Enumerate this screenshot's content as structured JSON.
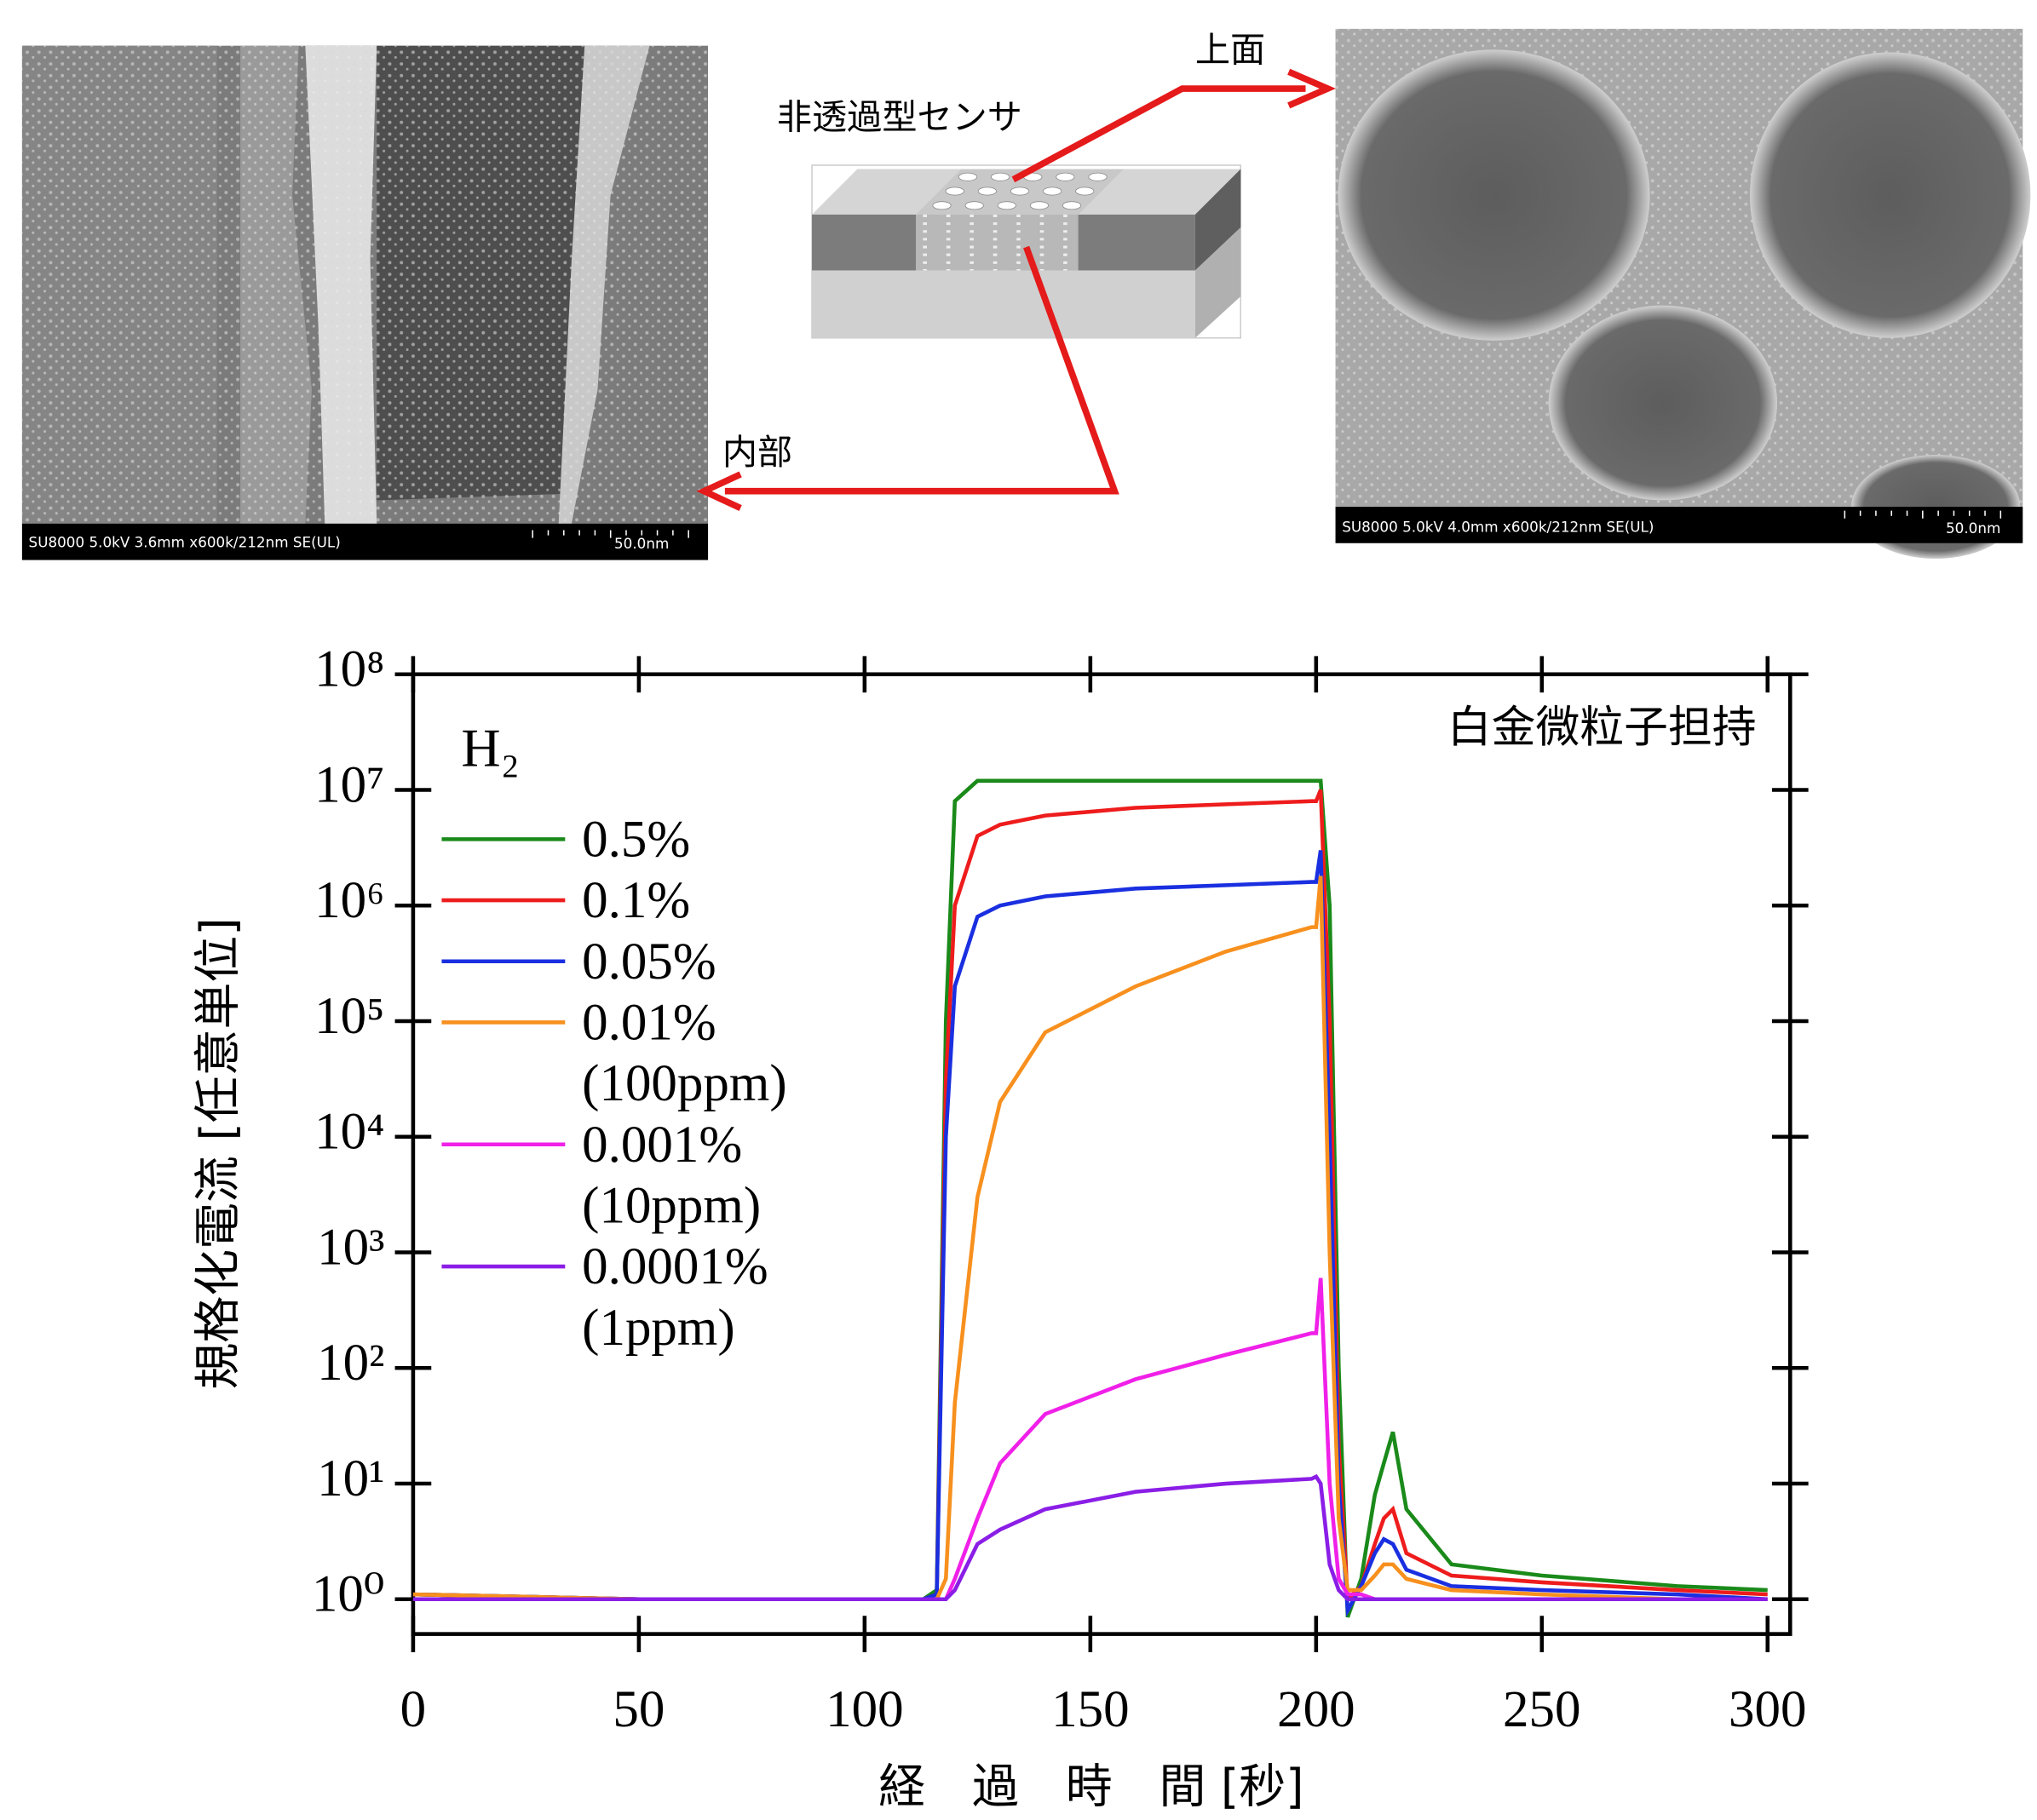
{
  "images": [
    {
      "caption": "SU8000 5.0kV 3.6mm x600k/212nm SE(UL)",
      "scale": "50.0nm"
    },
    {
      "caption": "SU8000 5.0kV 4.0mm x600k/212nm SE(UL)",
      "scale": "50.0nm"
    }
  ],
  "diagram": {
    "title": "非透過型センサ",
    "top_label": "上面",
    "inner_label": "内部"
  },
  "chart_data": {
    "type": "line",
    "log_y": true,
    "gas": "H₂",
    "annotation": "白金微粒子担持",
    "xlabel": "経　過　時　間 [秒]",
    "ylabel": "規格化電流 [任意単位]",
    "xlim": [
      0,
      305
    ],
    "ylim": [
      0.5,
      100000000
    ],
    "xticks": [
      0,
      50,
      100,
      150,
      200,
      250,
      300
    ],
    "yticks": [
      {
        "value": 1,
        "label": "10⁰"
      },
      {
        "value": 10,
        "label": "10¹"
      },
      {
        "value": 100,
        "label": "10²"
      },
      {
        "value": 1000,
        "label": "10³"
      },
      {
        "value": 10000,
        "label": "10⁴"
      },
      {
        "value": 100000,
        "label": "10⁵"
      },
      {
        "value": 1000000,
        "label": "10⁶"
      },
      {
        "value": 10000000,
        "label": "10⁷"
      },
      {
        "value": 100000000,
        "label": "10⁸"
      }
    ],
    "x": [
      0,
      50,
      100,
      113,
      116,
      118,
      120,
      125,
      130,
      140,
      160,
      180,
      199,
      200,
      201,
      203,
      205,
      207,
      210,
      213,
      215,
      217,
      220,
      230,
      250,
      280,
      300
    ],
    "series": [
      {
        "name": "0.5%",
        "color": "#1a8a1a",
        "values": [
          1.1,
          1,
          1,
          1,
          1.2,
          100000,
          8000000,
          12000000,
          12000000,
          12000000,
          12000000,
          12000000,
          12000000,
          12000000,
          12000000,
          1000000,
          100,
          0.7,
          1.5,
          8,
          15,
          28,
          6,
          2,
          1.6,
          1.3,
          1.2
        ]
      },
      {
        "name": "0.1%",
        "color": "#ee1c1c",
        "values": [
          1.1,
          1,
          1,
          1,
          1.1,
          30000,
          1000000,
          4000000,
          5000000,
          6000000,
          7000000,
          7500000,
          8000000,
          8000000,
          10000000,
          100000,
          20,
          1,
          1.3,
          3,
          5,
          6,
          2.5,
          1.6,
          1.4,
          1.2,
          1.1
        ]
      },
      {
        "name": "0.05%",
        "color": "#1a2fe0",
        "values": [
          1.1,
          1,
          1,
          1,
          1.1,
          10000,
          200000,
          800000,
          1000000,
          1200000,
          1400000,
          1500000,
          1600000,
          1600000,
          3000000,
          10000,
          10,
          0.8,
          1.3,
          2.5,
          3.3,
          3,
          1.8,
          1.3,
          1.2,
          1.1,
          1
        ]
      },
      {
        "name": "0.01%",
        "name_line2": "(100ppm)",
        "color": "#f7901e",
        "values": [
          1.1,
          1,
          1,
          1,
          1,
          1.5,
          50,
          3000,
          20000,
          80000,
          200000,
          400000,
          650000,
          650000,
          1800000,
          1000,
          5,
          1.2,
          1.2,
          1.6,
          2,
          2,
          1.5,
          1.2,
          1.1,
          1,
          1
        ]
      },
      {
        "name": "0.001%",
        "name_line2": "(10ppm)",
        "color": "#f020e8",
        "values": [
          1,
          1,
          1,
          1,
          1,
          1,
          1.5,
          5,
          15,
          40,
          80,
          130,
          200,
          200,
          600,
          10,
          1.5,
          1.1,
          1.1,
          1,
          1,
          1,
          1,
          1,
          1,
          1,
          1
        ]
      },
      {
        "name": "0.0001%",
        "name_line2": "(1ppm)",
        "color": "#8a1ee6",
        "values": [
          1,
          1,
          1,
          1,
          1,
          1,
          1.2,
          3,
          4,
          6,
          8.5,
          10,
          11,
          11.5,
          10,
          2,
          1.2,
          1,
          1,
          1,
          1,
          1,
          1,
          1,
          1,
          1,
          1
        ]
      }
    ]
  }
}
